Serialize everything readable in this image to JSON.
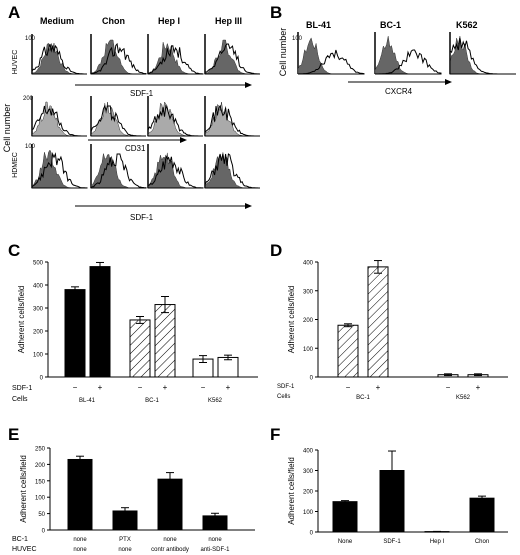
{
  "chart_data": [
    {
      "panel": "A",
      "type": "histogram",
      "columns": [
        "Medium",
        "Chon",
        "Hep I",
        "Hep III"
      ],
      "rows": [
        {
          "label": "HUVEC",
          "marker": "SDF-1",
          "y_tick": "100"
        },
        {
          "label": "",
          "marker": "CD31",
          "y_tick": "200"
        },
        {
          "label": "HDMEC",
          "marker": "SDF-1",
          "y_tick": "100"
        }
      ],
      "ylabel": "Cell number"
    },
    {
      "panel": "B",
      "type": "histogram",
      "columns": [
        "BL-41",
        "BC-1",
        "K562"
      ],
      "marker": "CXCR4",
      "ylabel": "Cell number",
      "y_tick": "100"
    },
    {
      "panel": "C",
      "type": "bar",
      "ylabel": "Adherent cells/field",
      "ylim": [
        0,
        500
      ],
      "yticks": [
        0,
        100,
        200,
        300,
        400,
        500
      ],
      "bars": [
        {
          "value": 380,
          "err": 12,
          "sdf": "−",
          "fill": "black"
        },
        {
          "value": 480,
          "err": 18,
          "sdf": "+",
          "fill": "black"
        },
        {
          "value": 248,
          "err": 15,
          "sdf": "−",
          "fill": "hatch"
        },
        {
          "value": 315,
          "err": 35,
          "sdf": "+",
          "fill": "hatch"
        },
        {
          "value": 78,
          "err": 15,
          "sdf": "−",
          "fill": "white"
        },
        {
          "value": 85,
          "err": 10,
          "sdf": "+",
          "fill": "white"
        }
      ],
      "row_labels": [
        "SDF-1",
        "Cells"
      ],
      "groups": [
        "BL-41",
        "BC-1",
        "K562"
      ]
    },
    {
      "panel": "D",
      "type": "bar",
      "ylabel": "Adherent cells/field",
      "ylim": [
        0,
        400
      ],
      "yticks": [
        0,
        100,
        200,
        300,
        400
      ],
      "bars": [
        {
          "value": 180,
          "err": 5,
          "sdf": "−",
          "fill": "hatch"
        },
        {
          "value": 383,
          "err": 22,
          "sdf": "+",
          "fill": "hatch"
        },
        {
          "value": 8,
          "err": 3,
          "sdf": "−",
          "fill": "white"
        },
        {
          "value": 8,
          "err": 3,
          "sdf": "+",
          "fill": "white"
        }
      ],
      "row_labels": [
        "SDF-1",
        "Cells"
      ],
      "groups": [
        "BC-1",
        "K562"
      ]
    },
    {
      "panel": "E",
      "type": "bar",
      "ylabel": "Adherent cells/field",
      "ylim": [
        0,
        250
      ],
      "yticks": [
        0,
        50,
        100,
        150,
        200,
        250
      ],
      "bars": [
        {
          "value": 215,
          "err": 10,
          "bc1": "none",
          "huvec": "none"
        },
        {
          "value": 58,
          "err": 10,
          "bc1": "PTX",
          "huvec": "none"
        },
        {
          "value": 155,
          "err": 20,
          "bc1": "none",
          "huvec": "contr antibody"
        },
        {
          "value": 43,
          "err": 8,
          "bc1": "none",
          "huvec": "anti-SDF-1"
        }
      ],
      "row_labels": [
        "BC-1",
        "HUVEC"
      ]
    },
    {
      "panel": "F",
      "type": "bar",
      "ylabel": "Adherent cells/field",
      "ylim": [
        0,
        400
      ],
      "yticks": [
        0,
        100,
        200,
        300,
        400
      ],
      "categories": [
        "None",
        "SDF-1",
        "Hep I",
        "Chon"
      ],
      "bars": [
        {
          "value": 148,
          "err": 5
        },
        {
          "value": 300,
          "err": 95
        },
        {
          "value": 2,
          "err": 1
        },
        {
          "value": 165,
          "err": 10
        }
      ]
    }
  ]
}
